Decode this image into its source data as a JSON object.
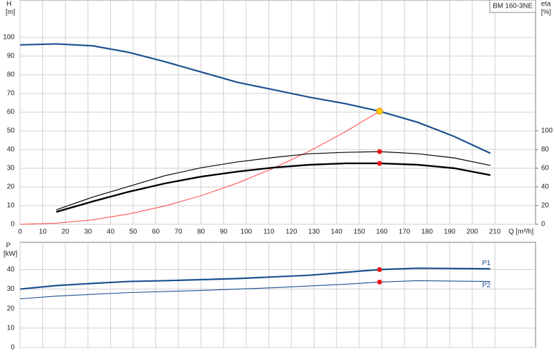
{
  "chart_data": [
    {
      "type": "line",
      "title": "BM 160-3NE",
      "x_label": "Q [m³/h]",
      "y_label": [
        "H",
        "[m]"
      ],
      "y2_label": [
        "eta",
        "[%]"
      ],
      "xlim": [
        0,
        228
      ],
      "xticks": [
        0,
        10,
        20,
        30,
        40,
        50,
        60,
        70,
        80,
        90,
        100,
        110,
        120,
        130,
        140,
        150,
        160,
        170,
        180,
        190,
        200,
        210
      ],
      "ylim": [
        0,
        120
      ],
      "yticks": [
        0,
        10,
        20,
        30,
        40,
        50,
        60,
        70,
        80,
        90,
        100
      ],
      "y2lim": [
        0,
        240
      ],
      "y2ticks": [
        0,
        20,
        40,
        60,
        80,
        100
      ],
      "show_x_tick_labels": true,
      "grid": true,
      "operating_point": 159,
      "series": [
        {
          "color": "#1a4f8f",
          "line_width": 2.2,
          "axis": "y",
          "marker_color": "#ffcc00",
          "x": [
            0,
            16,
            32,
            48,
            64,
            80,
            96,
            112,
            128,
            144,
            159,
            176,
            192,
            208
          ],
          "values": [
            96,
            96.5,
            95.5,
            92,
            87,
            81.5,
            76,
            72,
            68,
            64.5,
            60.5,
            54.5,
            47,
            38
          ]
        },
        {
          "color": "#ff4040",
          "line_width": 1,
          "axis": "y",
          "x": [
            0,
            16,
            32,
            48,
            64,
            80,
            96,
            112,
            128,
            144,
            159
          ],
          "values": [
            0,
            0.6,
            2.4,
            5.5,
            9.8,
            15.3,
            22,
            30,
            39.2,
            49.6,
            60.5
          ]
        },
        {
          "color": "#000000",
          "line_width": 1.2,
          "axis": "y2",
          "marker_color": "#ee1111",
          "x": [
            16,
            32,
            48,
            64,
            80,
            96,
            112,
            128,
            144,
            159,
            176,
            192,
            208
          ],
          "values": [
            15.5,
            29,
            40.5,
            52,
            60.5,
            66.7,
            71.5,
            75.5,
            77,
            77.8,
            75.5,
            71,
            63
          ]
        },
        {
          "color": "#000000",
          "line_width": 2.4,
          "axis": "y2",
          "marker_color": "#ee1111",
          "x": [
            16,
            32,
            48,
            64,
            80,
            96,
            112,
            128,
            144,
            159,
            176,
            192,
            208
          ],
          "values": [
            13.3,
            24.4,
            34.8,
            43.7,
            51,
            56.3,
            60.7,
            63.7,
            65.2,
            65.2,
            63.7,
            60,
            52.6
          ]
        }
      ]
    },
    {
      "type": "line",
      "y_label": [
        "P",
        "[kW]"
      ],
      "xlim": [
        0,
        228
      ],
      "xticks": [
        0,
        10,
        20,
        30,
        40,
        50,
        60,
        70,
        80,
        90,
        100,
        110,
        120,
        130,
        140,
        150,
        160,
        170,
        180,
        190,
        200,
        210
      ],
      "ylim": [
        0,
        54
      ],
      "yticks": [
        0,
        10,
        20,
        30,
        40
      ],
      "show_x_tick_labels": false,
      "grid": true,
      "operating_point": 159,
      "series": [
        {
          "name": "P1",
          "color": "#1a4f8f",
          "line_width": 2.2,
          "axis": "y",
          "marker_color": "#ee1111",
          "x": [
            0,
            16,
            32,
            48,
            64,
            96,
            128,
            159,
            176,
            208
          ],
          "values": [
            30,
            31.8,
            32.9,
            33.9,
            34.3,
            35.4,
            37.1,
            40,
            40.7,
            40.4
          ]
        },
        {
          "name": "P2",
          "color": "#1a4f8f",
          "line_width": 1.1,
          "axis": "y",
          "marker_color": "#ee1111",
          "x": [
            0,
            16,
            48,
            80,
            112,
            144,
            159,
            176,
            208
          ],
          "values": [
            25,
            26.4,
            28.2,
            29.3,
            30.7,
            32.5,
            33.6,
            34.3,
            33.9
          ]
        }
      ]
    }
  ]
}
